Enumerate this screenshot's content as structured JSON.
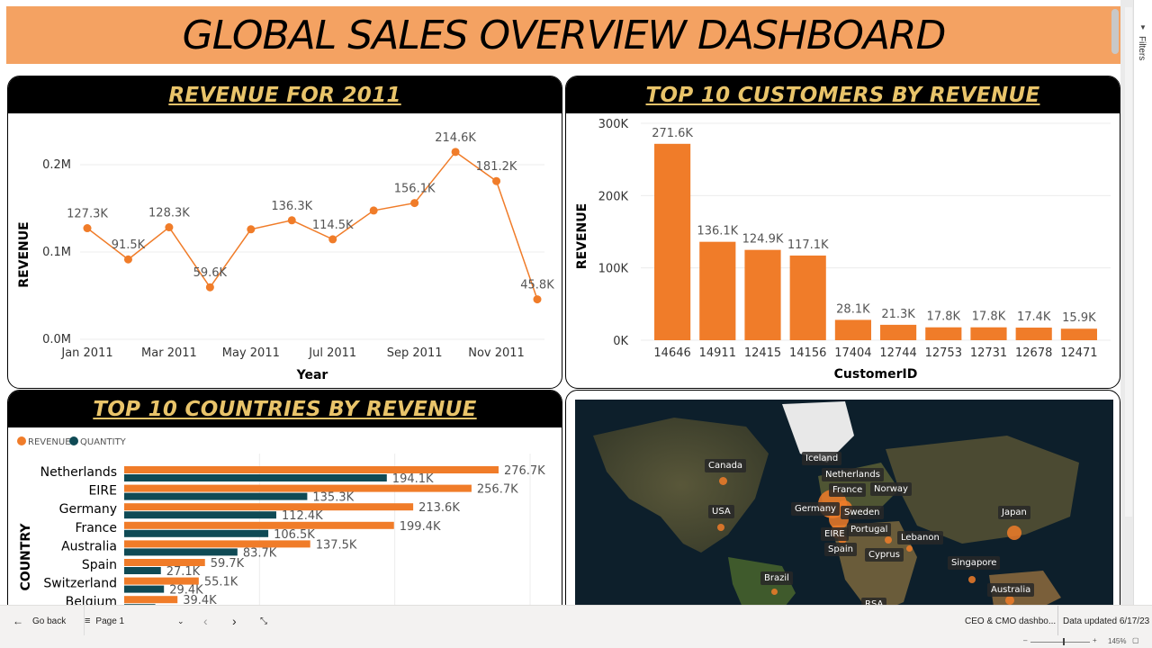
{
  "title": "GLOBAL SALES OVERVIEW DASHBOARD",
  "panels": {
    "revenue_2011": {
      "title": "REVENUE FOR 2011"
    },
    "top_customers": {
      "title": "TOP 10 CUSTOMERS BY REVENUE"
    },
    "top_countries": {
      "title": "TOP 10 COUNTRIES BY REVENUE"
    }
  },
  "chart_data": [
    {
      "type": "line",
      "title": "REVENUE FOR 2011",
      "xlabel": "Year",
      "ylabel": "REVENUE",
      "x_tick_labels": [
        "Jan 2011",
        "Mar 2011",
        "May 2011",
        "Jul 2011",
        "Sep 2011",
        "Nov 2011"
      ],
      "x": [
        "Jan 2011",
        "Feb 2011",
        "Mar 2011",
        "Apr 2011",
        "May 2011",
        "Jun 2011",
        "Jul 2011",
        "Aug 2011",
        "Sep 2011",
        "Oct 2011",
        "Nov 2011",
        "Dec 2011"
      ],
      "values": [
        127300,
        91500,
        128300,
        59600,
        126000,
        136300,
        114500,
        147500,
        156100,
        214600,
        181200,
        45800
      ],
      "data_labels": [
        "127.3K",
        "91.5K",
        "128.3K",
        "59.6K",
        "",
        "136.3K",
        "114.5K",
        "",
        "156.1K",
        "214.6K",
        "181.2K",
        "45.8K"
      ],
      "y_ticks": [
        0,
        100000,
        200000
      ],
      "y_tick_labels": [
        "0.0M",
        "0.1M",
        "0.2M"
      ],
      "ylim": [
        0,
        200000
      ],
      "grid": true,
      "color": "#f07c29"
    },
    {
      "type": "bar",
      "title": "TOP 10 CUSTOMERS BY REVENUE",
      "xlabel": "CustomerID",
      "ylabel": "REVENUE",
      "categories": [
        "14646",
        "14911",
        "12415",
        "14156",
        "17404",
        "12744",
        "12753",
        "12731",
        "12678",
        "12471"
      ],
      "values": [
        271600,
        136100,
        124900,
        117100,
        28100,
        21300,
        17800,
        17800,
        17400,
        15900
      ],
      "data_labels": [
        "271.6K",
        "136.1K",
        "124.9K",
        "117.1K",
        "28.1K",
        "21.3K",
        "17.8K",
        "17.8K",
        "17.4K",
        "15.9K"
      ],
      "y_ticks": [
        0,
        100000,
        200000,
        300000
      ],
      "y_tick_labels": [
        "0K",
        "100K",
        "200K",
        "300K"
      ],
      "ylim": [
        0,
        300000
      ],
      "grid": true,
      "color": "#f07c29"
    },
    {
      "type": "bar",
      "orientation": "horizontal",
      "title": "TOP 10 COUNTRIES BY REVENUE",
      "ylabel": "COUNTRY",
      "legend": "top-left",
      "categories": [
        "Netherlands",
        "EIRE",
        "Germany",
        "France",
        "Australia",
        "Spain",
        "Switzerland",
        "Belgium"
      ],
      "series": [
        {
          "name": "REVENUE",
          "color": "#f07c29",
          "values": [
            276700,
            256700,
            213600,
            199400,
            137500,
            59700,
            55100,
            39400
          ],
          "labels": [
            "276.7K",
            "256.7K",
            "213.6K",
            "199.4K",
            "137.5K",
            "59.7K",
            "55.1K",
            "39.4K"
          ]
        },
        {
          "name": "QUANTITY",
          "color": "#0f4a55",
          "values": [
            194100,
            135300,
            112400,
            106500,
            83700,
            27100,
            29400,
            23000
          ],
          "labels": [
            "194.1K",
            "135.3K",
            "112.4K",
            "106.5K",
            "83.7K",
            "27.1K",
            "29.4K",
            ""
          ]
        }
      ],
      "xlim": [
        0,
        300000
      ],
      "grid": true
    }
  ],
  "map": {
    "labels": [
      "Iceland",
      "Canada",
      "Netherlands",
      "France",
      "Norway",
      "Germany",
      "Sweden",
      "USA",
      "Japan",
      "Portugal",
      "EIRE",
      "Lebanon",
      "Spain",
      "Cyprus",
      "Singapore",
      "Brazil",
      "Australia",
      "RSA"
    ]
  },
  "filters_label": "Filters",
  "footer": {
    "go_back": "Go back",
    "page": "Page 1",
    "report_name": "CEO & CMO dashbo...",
    "data_updated": "Data updated 6/17/23",
    "zoom": "145%"
  }
}
